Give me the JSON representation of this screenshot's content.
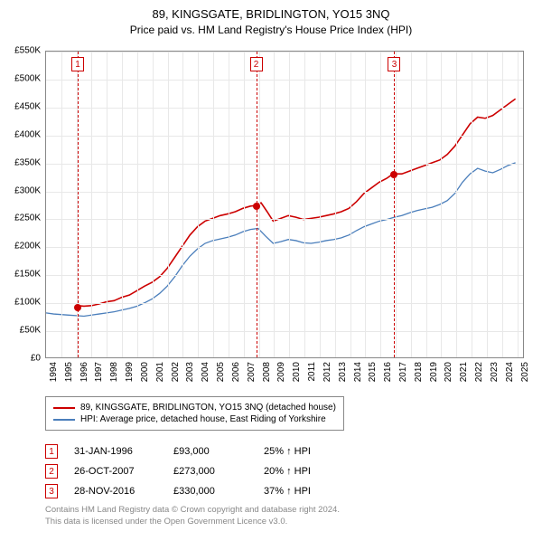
{
  "title": "89, KINGSGATE, BRIDLINGTON, YO15 3NQ",
  "subtitle": "Price paid vs. HM Land Registry's House Price Index (HPI)",
  "chart": {
    "type": "line",
    "background_color": "#ffffff",
    "grid_color": "#e8e8e8",
    "axis_color": "#888888",
    "xlim": [
      1994,
      2025.5
    ],
    "ylim": [
      0,
      550000
    ],
    "ytick_step": 50000,
    "xtick_step": 1,
    "yticks": [
      "£0",
      "£50K",
      "£100K",
      "£150K",
      "£200K",
      "£250K",
      "£300K",
      "£350K",
      "£400K",
      "£450K",
      "£500K",
      "£550K"
    ],
    "xticks": [
      "1994",
      "1995",
      "1996",
      "1997",
      "1998",
      "1999",
      "2000",
      "2001",
      "2002",
      "2003",
      "2004",
      "2005",
      "2006",
      "2007",
      "2008",
      "2009",
      "2010",
      "2011",
      "2012",
      "2013",
      "2014",
      "2015",
      "2016",
      "2017",
      "2018",
      "2019",
      "2020",
      "2021",
      "2022",
      "2023",
      "2024",
      "2025"
    ],
    "series": [
      {
        "name": "subject",
        "color": "#cc0000",
        "line_width": 1.6,
        "points": [
          [
            1996.08,
            93000
          ],
          [
            1996.5,
            92000
          ],
          [
            1997,
            93000
          ],
          [
            1997.5,
            96000
          ],
          [
            1998,
            100000
          ],
          [
            1998.5,
            102000
          ],
          [
            1999,
            108000
          ],
          [
            1999.5,
            112000
          ],
          [
            2000,
            120000
          ],
          [
            2000.5,
            128000
          ],
          [
            2001,
            135000
          ],
          [
            2001.5,
            145000
          ],
          [
            2002,
            160000
          ],
          [
            2002.5,
            180000
          ],
          [
            2003,
            200000
          ],
          [
            2003.5,
            220000
          ],
          [
            2004,
            235000
          ],
          [
            2004.5,
            245000
          ],
          [
            2005,
            250000
          ],
          [
            2005.5,
            255000
          ],
          [
            2006,
            258000
          ],
          [
            2006.5,
            262000
          ],
          [
            2007,
            268000
          ],
          [
            2007.5,
            272000
          ],
          [
            2007.82,
            273000
          ],
          [
            2008.2,
            278000
          ],
          [
            2008.6,
            262000
          ],
          [
            2009,
            245000
          ],
          [
            2009.5,
            250000
          ],
          [
            2010,
            255000
          ],
          [
            2010.5,
            252000
          ],
          [
            2011,
            248000
          ],
          [
            2011.5,
            250000
          ],
          [
            2012,
            252000
          ],
          [
            2012.5,
            255000
          ],
          [
            2013,
            258000
          ],
          [
            2013.5,
            262000
          ],
          [
            2014,
            268000
          ],
          [
            2014.5,
            280000
          ],
          [
            2015,
            295000
          ],
          [
            2015.5,
            305000
          ],
          [
            2016,
            315000
          ],
          [
            2016.5,
            322000
          ],
          [
            2016.91,
            330000
          ],
          [
            2017.5,
            330000
          ],
          [
            2018,
            335000
          ],
          [
            2018.5,
            340000
          ],
          [
            2019,
            345000
          ],
          [
            2019.5,
            350000
          ],
          [
            2020,
            355000
          ],
          [
            2020.5,
            365000
          ],
          [
            2021,
            380000
          ],
          [
            2021.5,
            400000
          ],
          [
            2022,
            420000
          ],
          [
            2022.5,
            432000
          ],
          [
            2023,
            430000
          ],
          [
            2023.5,
            435000
          ],
          [
            2024,
            445000
          ],
          [
            2024.5,
            455000
          ],
          [
            2025,
            465000
          ]
        ]
      },
      {
        "name": "hpi",
        "color": "#4a7ebb",
        "line_width": 1.3,
        "points": [
          [
            1994,
            80000
          ],
          [
            1994.5,
            78000
          ],
          [
            1995,
            77000
          ],
          [
            1995.5,
            76000
          ],
          [
            1996,
            75000
          ],
          [
            1996.5,
            74000
          ],
          [
            1997,
            76000
          ],
          [
            1997.5,
            78000
          ],
          [
            1998,
            80000
          ],
          [
            1998.5,
            82000
          ],
          [
            1999,
            85000
          ],
          [
            1999.5,
            88000
          ],
          [
            2000,
            92000
          ],
          [
            2000.5,
            98000
          ],
          [
            2001,
            105000
          ],
          [
            2001.5,
            115000
          ],
          [
            2002,
            128000
          ],
          [
            2002.5,
            145000
          ],
          [
            2003,
            165000
          ],
          [
            2003.5,
            182000
          ],
          [
            2004,
            195000
          ],
          [
            2004.5,
            205000
          ],
          [
            2005,
            210000
          ],
          [
            2005.5,
            213000
          ],
          [
            2006,
            216000
          ],
          [
            2006.5,
            220000
          ],
          [
            2007,
            226000
          ],
          [
            2007.5,
            230000
          ],
          [
            2008,
            232000
          ],
          [
            2008.5,
            218000
          ],
          [
            2009,
            205000
          ],
          [
            2009.5,
            208000
          ],
          [
            2010,
            212000
          ],
          [
            2010.5,
            210000
          ],
          [
            2011,
            206000
          ],
          [
            2011.5,
            205000
          ],
          [
            2012,
            207000
          ],
          [
            2012.5,
            210000
          ],
          [
            2013,
            212000
          ],
          [
            2013.5,
            215000
          ],
          [
            2014,
            220000
          ],
          [
            2014.5,
            228000
          ],
          [
            2015,
            235000
          ],
          [
            2015.5,
            240000
          ],
          [
            2016,
            245000
          ],
          [
            2016.5,
            248000
          ],
          [
            2017,
            252000
          ],
          [
            2017.5,
            255000
          ],
          [
            2018,
            260000
          ],
          [
            2018.5,
            264000
          ],
          [
            2019,
            267000
          ],
          [
            2019.5,
            270000
          ],
          [
            2020,
            275000
          ],
          [
            2020.5,
            282000
          ],
          [
            2021,
            295000
          ],
          [
            2021.5,
            315000
          ],
          [
            2022,
            330000
          ],
          [
            2022.5,
            340000
          ],
          [
            2023,
            335000
          ],
          [
            2023.5,
            332000
          ],
          [
            2024,
            338000
          ],
          [
            2024.5,
            345000
          ],
          [
            2025,
            350000
          ]
        ]
      }
    ],
    "sale_lines": [
      {
        "num": "1",
        "year_frac": 1996.08
      },
      {
        "num": "2",
        "year_frac": 2007.82
      },
      {
        "num": "3",
        "year_frac": 2016.91
      }
    ],
    "sale_dots": [
      {
        "year_frac": 1996.08,
        "value": 93000
      },
      {
        "year_frac": 2007.82,
        "value": 273000
      },
      {
        "year_frac": 2016.91,
        "value": 330000
      }
    ],
    "tick_fontsize": 10,
    "title_fontsize": 13,
    "subtitle_fontsize": 12
  },
  "legend": {
    "items": [
      {
        "color": "#cc0000",
        "label": "89, KINGSGATE, BRIDLINGTON, YO15 3NQ (detached house)"
      },
      {
        "color": "#4a7ebb",
        "label": "HPI: Average price, detached house, East Riding of Yorkshire"
      }
    ]
  },
  "sales_table": {
    "arrow_glyph": "↑",
    "hpi_label": "HPI",
    "rows": [
      {
        "num": "1",
        "date": "31-JAN-1996",
        "price": "£93,000",
        "diff_pct": "25%"
      },
      {
        "num": "2",
        "date": "26-OCT-2007",
        "price": "£273,000",
        "diff_pct": "20%"
      },
      {
        "num": "3",
        "date": "28-NOV-2016",
        "price": "£330,000",
        "diff_pct": "37%"
      }
    ]
  },
  "attribution": {
    "line1": "Contains HM Land Registry data © Crown copyright and database right 2024.",
    "line2": "This data is licensed under the Open Government Licence v3.0."
  }
}
